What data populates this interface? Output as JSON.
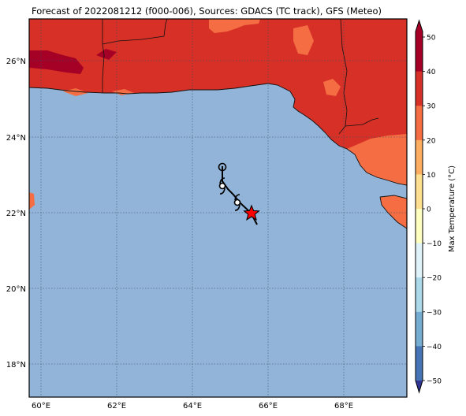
{
  "title": "Forecast of 2022081212 (f000-006), Sources: GDACS (TC track), GFS (Meteo)",
  "map": {
    "lon_ticks": [
      "60°E",
      "62°E",
      "64°E",
      "66°E",
      "68°E"
    ],
    "lat_ticks": [
      "26°N",
      "24°N",
      "22°N",
      "20°N",
      "18°N"
    ],
    "sea_color": "#91b4d8",
    "land_colors": {
      "30_to_40": "#d73027",
      "20_to_30": "#f46d43",
      "40_to_50": "#a50026"
    },
    "grid": "dotted"
  },
  "track": {
    "current_position_marker": "red-star-icon",
    "forecast_markers": [
      "cyclone-symbol-icon",
      "cyclone-symbol-icon",
      "cyclone-symbol-icon",
      "circle-marker-icon"
    ]
  },
  "colorbar": {
    "label": "Max Temperature (°C)",
    "ticks": [
      "50",
      "40",
      "30",
      "20",
      "10",
      "0",
      "−10",
      "−20",
      "−30",
      "−40",
      "−50"
    ],
    "colors": [
      "#a50026",
      "#d73027",
      "#f46d43",
      "#fdae61",
      "#fee090",
      "#ffffbf",
      "#e0f3f8",
      "#abd9e9",
      "#74add1",
      "#4575b4",
      "#313695"
    ]
  }
}
